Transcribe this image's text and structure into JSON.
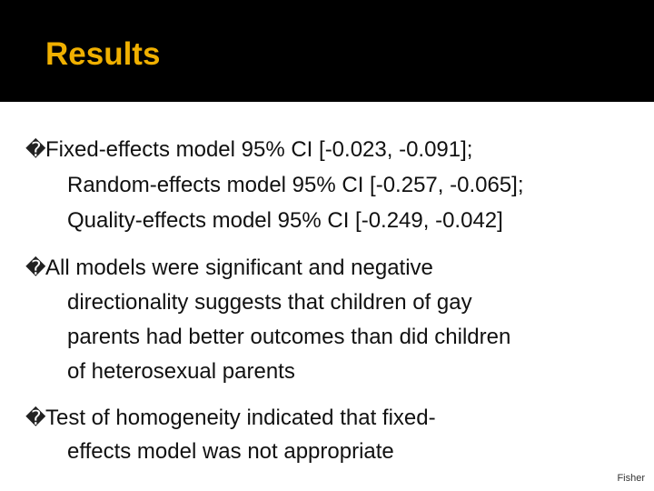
{
  "header": {
    "title": "Results"
  },
  "marker": "�",
  "bullets": [
    {
      "lines": [
        "Fixed-effects model 95% CI [-0.023, -0.091];",
        "Random-effects model 95% CI [-0.257, -0.065];",
        "Quality-effects model 95% CI [-0.249, -0.042]"
      ]
    },
    {
      "lines": [
        "All models were significant and negative",
        "directionality suggests that children of gay",
        "parents had better outcomes than did children",
        "of heterosexual parents"
      ]
    },
    {
      "lines": [
        "Test of homogeneity indicated that fixed-",
        "effects model was not appropriate"
      ]
    }
  ],
  "footer": "Fisher"
}
